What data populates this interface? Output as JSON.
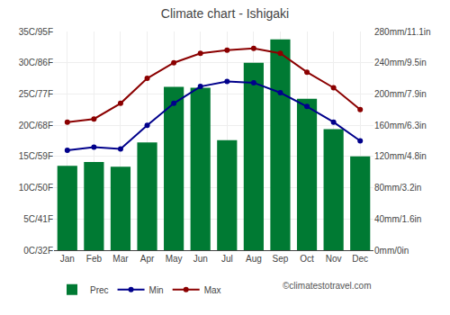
{
  "chart_data": {
    "type": "bar",
    "title": "Climate chart - Ishigaki",
    "categories": [
      "Jan",
      "Feb",
      "Mar",
      "Apr",
      "May",
      "Jun",
      "Jul",
      "Aug",
      "Sep",
      "Oct",
      "Nov",
      "Dec"
    ],
    "series": [
      {
        "name": "Prec",
        "type": "bar",
        "axis": "y2",
        "color": "#007A33",
        "values": [
          108,
          113,
          107,
          138,
          209,
          208,
          141,
          240,
          270,
          194,
          155,
          120
        ]
      },
      {
        "name": "Min",
        "type": "line",
        "marker": "circle",
        "color": "#00008B",
        "values": [
          16.0,
          16.5,
          16.2,
          20.0,
          23.5,
          26.2,
          27.0,
          26.8,
          25.2,
          23.0,
          20.5,
          17.5
        ]
      },
      {
        "name": "Max",
        "type": "line",
        "marker": "circle",
        "color": "#8B0000",
        "values": [
          20.5,
          21.0,
          23.5,
          27.5,
          30.0,
          31.5,
          32.0,
          32.3,
          31.5,
          28.5,
          26.0,
          22.5
        ]
      }
    ],
    "ylim": [
      0,
      35
    ],
    "yticks": [
      {
        "value": 0,
        "label": "0C/32F"
      },
      {
        "value": 5,
        "label": "5C/41F"
      },
      {
        "value": 10,
        "label": "10C/50F"
      },
      {
        "value": 15,
        "label": "15C/59F"
      },
      {
        "value": 20,
        "label": "20C/68F"
      },
      {
        "value": 25,
        "label": "25C/77F"
      },
      {
        "value": 30,
        "label": "30C/86F"
      },
      {
        "value": 35,
        "label": "35C/95F"
      }
    ],
    "y2lim": [
      0,
      280
    ],
    "y2ticks": [
      {
        "value": 0,
        "label": "0mm/0in"
      },
      {
        "value": 40,
        "label": "40mm/1.6in"
      },
      {
        "value": 80,
        "label": "80mm/3.2in"
      },
      {
        "value": 120,
        "label": "120mm/4.8in"
      },
      {
        "value": 160,
        "label": "160mm/6.3in"
      },
      {
        "value": 200,
        "label": "200mm/7.9in"
      },
      {
        "value": 240,
        "label": "240mm/9.5in"
      },
      {
        "value": 280,
        "label": "280mm/11.1in"
      }
    ],
    "grid": true,
    "legend": "lower left",
    "annotations": [
      "©climatestotravel.com"
    ]
  }
}
